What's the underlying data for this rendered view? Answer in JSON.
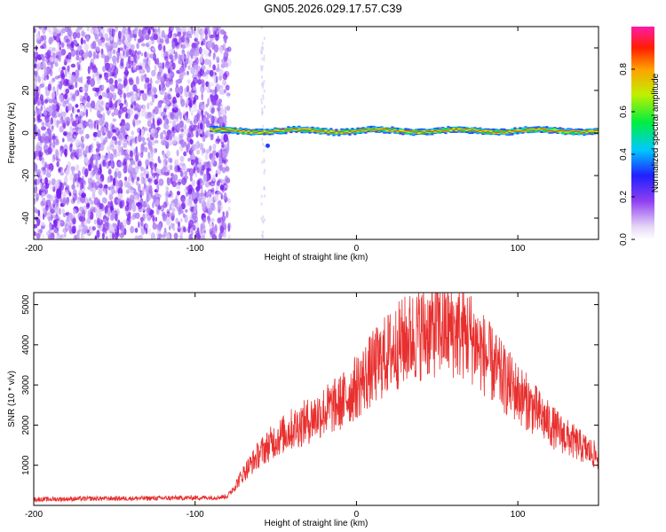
{
  "title": "GN05.2026.029.17.57.C39",
  "chart_data": [
    {
      "type": "heatmap",
      "name": "spectrogram",
      "xlabel": "Height of straight line (km)",
      "ylabel": "Frequency (Hz)",
      "xlim": [
        -200,
        150
      ],
      "ylim": [
        -50,
        50
      ],
      "xticks": [
        -200,
        -100,
        0,
        100
      ],
      "yticks": [
        -40,
        -20,
        0,
        20,
        40
      ],
      "noise_region_end_km": -82,
      "signal_start_km": -90,
      "signal_center_hz": 1,
      "signal_bandwidth_hz": 3,
      "colorbar": {
        "label": "Normalized spectral amplitude",
        "range": [
          0,
          1
        ],
        "ticks": [
          "0.0",
          "0.2",
          "0.4",
          "0.6",
          "0.8"
        ]
      }
    },
    {
      "type": "line",
      "name": "snr",
      "xlabel": "Height of straight line (km)",
      "ylabel": "SNR (10 * v/v)",
      "xlim": [
        -200,
        150
      ],
      "ylim": [
        0,
        5300
      ],
      "xticks": [
        -200,
        -100,
        0,
        100
      ],
      "yticks": [
        1000,
        2000,
        3000,
        4000,
        5000
      ],
      "color": "#e8302f",
      "x": [
        -200,
        -180,
        -160,
        -140,
        -120,
        -100,
        -85,
        -80,
        -75,
        -70,
        -60,
        -50,
        -40,
        -30,
        -20,
        -10,
        0,
        10,
        20,
        30,
        40,
        50,
        60,
        70,
        80,
        90,
        100,
        110,
        120,
        130,
        140,
        150
      ],
      "values": [
        150,
        160,
        170,
        175,
        180,
        190,
        200,
        230,
        500,
        800,
        1300,
        1650,
        1900,
        2100,
        2350,
        2550,
        2950,
        3400,
        3800,
        4100,
        4300,
        4400,
        4350,
        4250,
        3700,
        3200,
        2800,
        2400,
        2000,
        1700,
        1450,
        1200
      ]
    }
  ]
}
